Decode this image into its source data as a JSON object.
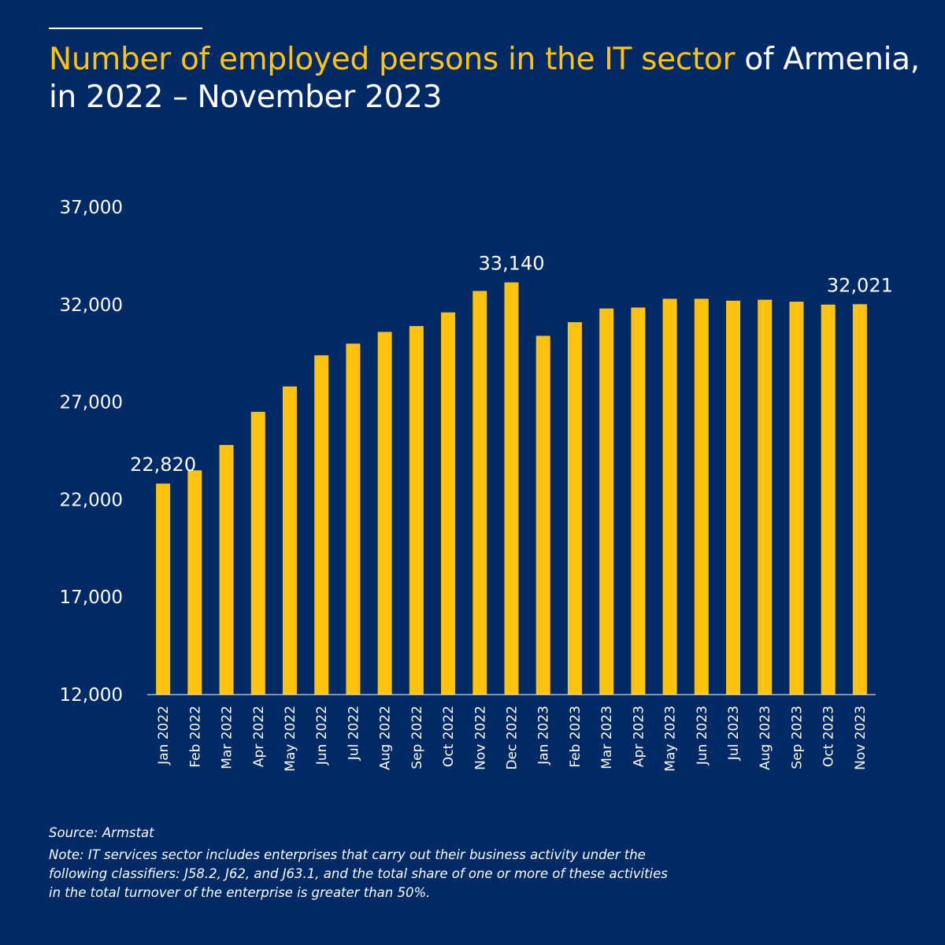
{
  "header": {
    "title_highlight": "Number of employed persons in the IT sector",
    "title_rest_line1": " of Armenia,",
    "title_line2": "in 2022 – November 2023"
  },
  "colors": {
    "background": "#002a66",
    "bar": "#ffc20e",
    "highlight_text": "#ffc20e",
    "text": "#ffffff"
  },
  "chart_data": {
    "type": "bar",
    "categories": [
      "Jan 2022",
      "Feb 2022",
      "Mar 2022",
      "Apr 2022",
      "May 2022",
      "Jun 2022",
      "Jul 2022",
      "Aug 2022",
      "Sep 2022",
      "Oct 2022",
      "Nov 2022",
      "Dec 2022",
      "Jan 2023",
      "Feb 2023",
      "Mar 2023",
      "Apr 2023",
      "May 2023",
      "Jun 2023",
      "Jul 2023",
      "Aug 2023",
      "Sep 2023",
      "Oct 2023",
      "Nov 2023"
    ],
    "values": [
      22820,
      23500,
      24800,
      26500,
      27800,
      29400,
      30000,
      30600,
      30900,
      31600,
      32700,
      33140,
      30400,
      31100,
      31800,
      31850,
      32300,
      32300,
      32200,
      32250,
      32150,
      32000,
      32021
    ],
    "ylim": [
      12000,
      37000
    ],
    "yticks": [
      12000,
      17000,
      22000,
      27000,
      32000,
      37000
    ],
    "ytick_labels": [
      "12,000",
      "17,000",
      "22,000",
      "27,000",
      "32,000",
      "37,000"
    ],
    "data_labels": [
      {
        "index": 0,
        "text": "22,820"
      },
      {
        "index": 11,
        "text": "33,140"
      },
      {
        "index": 22,
        "text": "32,021"
      }
    ],
    "grid": false
  },
  "footer": {
    "source": "Source: Armstat",
    "note": "Note: IT services sector includes enterprises that carry out their business activity under the\nfollowing classifiers: J58.2, J62, and J63.1, and the total share of one or more of these activities\nin the total turnover of the enterprise is greater than 50%."
  }
}
